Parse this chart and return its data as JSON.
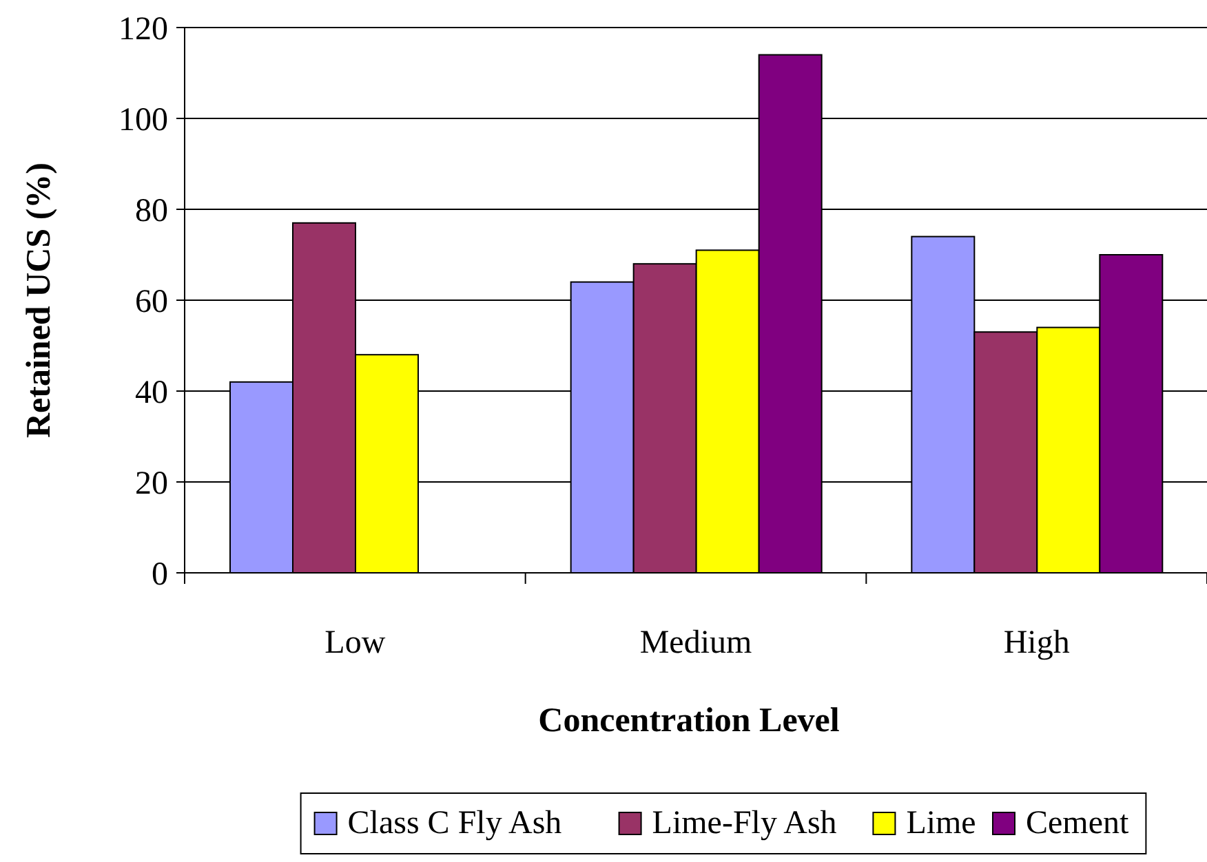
{
  "chart_data": {
    "type": "bar",
    "xlabel": "Concentration Level",
    "ylabel": "Retained UCS (%)",
    "categories": [
      "Low",
      "Medium",
      "High"
    ],
    "series": [
      {
        "name": "Class C Fly Ash",
        "color": "#9999ff",
        "values": [
          42,
          64,
          74
        ]
      },
      {
        "name": "Lime-Fly Ash",
        "color": "#993366",
        "values": [
          77,
          68,
          53
        ]
      },
      {
        "name": "Lime",
        "color": "#ffff00",
        "values": [
          48,
          71,
          54
        ]
      },
      {
        "name": "Cement",
        "color": "#800080",
        "values": [
          null,
          114,
          70
        ]
      }
    ],
    "ylim": [
      0,
      120
    ],
    "yticks": [
      0,
      20,
      40,
      60,
      80,
      100,
      120
    ],
    "grid": "y",
    "legend": "bottom"
  }
}
